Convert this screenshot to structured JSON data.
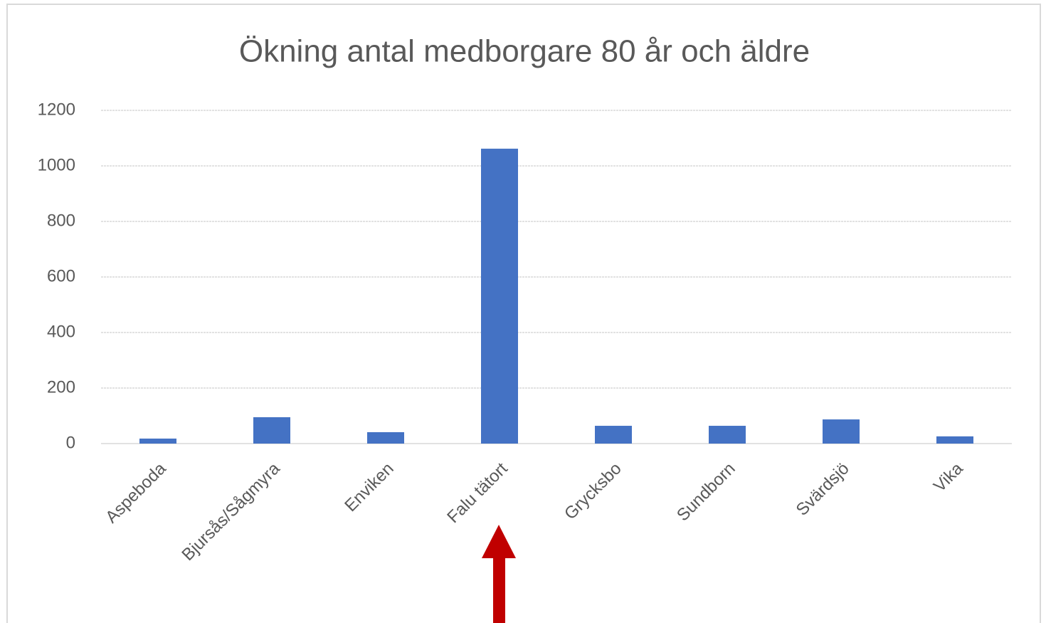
{
  "chart_data": {
    "type": "bar",
    "title": "Ökning antal medborgare 80 år och äldre",
    "categories": [
      "Aspeboda",
      "Bjursås/Sågmyra",
      "Enviken",
      "Falu tätort",
      "Grycksbo",
      "Sundborn",
      "Svärdsjö",
      "Vika"
    ],
    "values": [
      18,
      95,
      41,
      1062,
      64,
      64,
      87,
      26
    ],
    "color": "#4472c4",
    "ylim": [
      0,
      1200
    ],
    "yticks": [
      0,
      200,
      400,
      600,
      800,
      1000,
      1200
    ],
    "grid": true
  }
}
